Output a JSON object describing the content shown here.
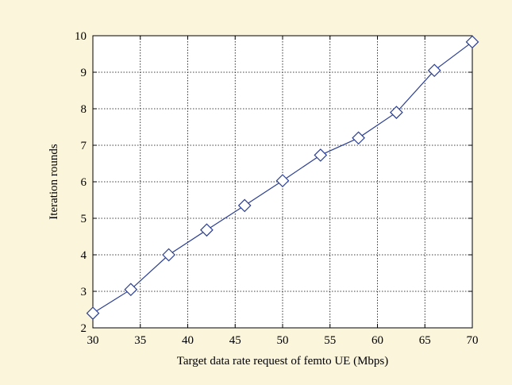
{
  "colors": {
    "background": "#fbf5dc",
    "plot_area": "#ffffff",
    "series": "#2b3f92",
    "grid": "#000000",
    "axis": "#000000"
  },
  "chart_data": {
    "type": "line",
    "xlabel": "Target data rate request of femto UE (Mbps)",
    "ylabel": "Iteration rounds",
    "xlim": [
      30,
      70
    ],
    "ylim": [
      2,
      10
    ],
    "xticks": [
      30,
      35,
      40,
      45,
      50,
      55,
      60,
      65,
      70
    ],
    "yticks": [
      2,
      3,
      4,
      5,
      6,
      7,
      8,
      9,
      10
    ],
    "grid": true,
    "marker": "diamond",
    "series": [
      {
        "x": [
          30,
          34,
          38,
          42,
          46,
          50,
          54,
          58,
          62,
          66,
          70
        ],
        "values": [
          2.4,
          3.05,
          4.0,
          4.68,
          5.35,
          6.03,
          6.73,
          7.2,
          7.9,
          9.05,
          9.83
        ]
      }
    ]
  }
}
